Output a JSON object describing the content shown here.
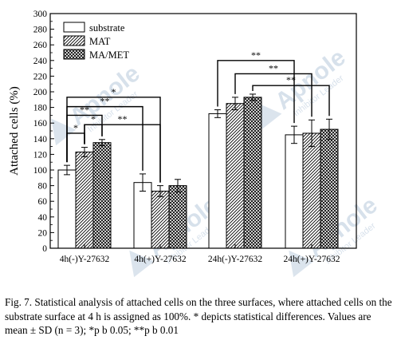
{
  "chart_data": {
    "type": "bar",
    "title": "",
    "xlabel": "",
    "ylabel": "Attached cells (%)",
    "ylim": [
      0,
      300
    ],
    "yticks": [
      0,
      20,
      40,
      60,
      80,
      100,
      120,
      140,
      160,
      180,
      200,
      220,
      240,
      260,
      280,
      300
    ],
    "categories": [
      "4h(-)Y-27632",
      "4h(+)Y-27632",
      "24h(-)Y-27632",
      "24h(+)Y-27632"
    ],
    "series": [
      {
        "name": "substrate",
        "values": [
          100,
          84,
          172,
          145
        ],
        "errors": [
          6,
          11,
          5,
          11
        ]
      },
      {
        "name": "MAT",
        "values": [
          123,
          73,
          185,
          147
        ],
        "errors": [
          6,
          7,
          8,
          17
        ]
      },
      {
        "name": "MA/MET",
        "values": [
          135,
          80,
          193,
          152
        ],
        "errors": [
          4,
          8,
          4,
          13
        ]
      }
    ],
    "legend_position": "top-left",
    "grid": false,
    "annotations": [
      {
        "label": "*",
        "from": [
          0,
          "substrate"
        ],
        "to": [
          0,
          "MAT"
        ],
        "level": 147
      },
      {
        "label": "*",
        "from": [
          0,
          "MAT"
        ],
        "to": [
          0,
          "MA/MET"
        ],
        "level": 158
      },
      {
        "label": "**",
        "from": [
          0,
          "substrate"
        ],
        "to": [
          0,
          "MA/MET"
        ],
        "level": 170
      },
      {
        "label": "**",
        "from": [
          0,
          "substrate"
        ],
        "to": [
          1,
          "substrate"
        ],
        "level": 181
      },
      {
        "label": "*",
        "from": [
          0,
          "substrate"
        ],
        "to": [
          1,
          "MAT"
        ],
        "level": 193
      },
      {
        "label": "**",
        "from": [
          0,
          "MAT"
        ],
        "to": [
          1,
          "MAT"
        ],
        "level": 158
      },
      {
        "label": "**",
        "from": [
          2,
          "substrate"
        ],
        "to": [
          3,
          "substrate"
        ],
        "level": 240
      },
      {
        "label": "**",
        "from": [
          2,
          "MAT"
        ],
        "to": [
          3,
          "MAT"
        ],
        "level": 223
      },
      {
        "label": "**",
        "from": [
          2,
          "MA/MET"
        ],
        "to": [
          3,
          "MA/MET"
        ],
        "level": 208
      }
    ]
  },
  "watermark": {
    "brand": "Apnole",
    "tagline": "Inhibitor Leader",
    "color": "#b8c9dc"
  },
  "caption": "Fig. 7. Statistical analysis of attached cells on the three surfaces, where attached cells on the substrate surface at 4 h is assigned as 100%. * depicts statistical differences. Values are mean ± SD (n = 3); *p b 0.05; **p b 0.01"
}
